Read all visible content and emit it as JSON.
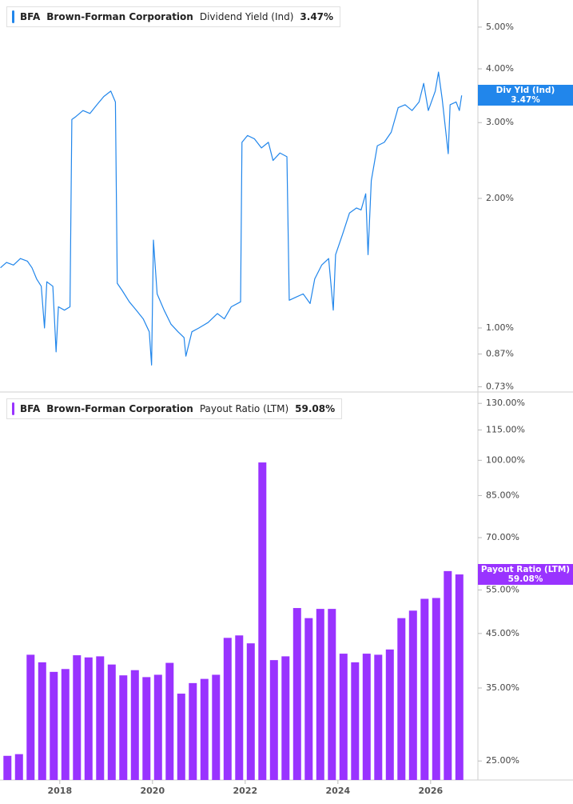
{
  "chart_data": [
    {
      "type": "line",
      "ticker": "BFA",
      "company": "Brown-Forman Corporation",
      "log_scale": true,
      "xlim": [
        2016.71,
        2027.02
      ],
      "ylim": [
        0.71,
        5.78
      ],
      "yticks": [
        {
          "value": 5,
          "label": "5.00%"
        },
        {
          "value": 4,
          "label": "4.00%"
        },
        {
          "value": 3,
          "label": "3.00%"
        },
        {
          "value": 2,
          "label": "2.00%"
        },
        {
          "value": 1,
          "label": "1.00%"
        },
        {
          "value": 0.87,
          "label": "0.87%"
        },
        {
          "value": 0.73,
          "label": "0.73%"
        }
      ],
      "x": [
        2016.72,
        2016.85,
        2017.0,
        2017.15,
        2017.3,
        2017.4,
        2017.5,
        2017.6,
        2017.67,
        2017.72,
        2017.85,
        2017.92,
        2017.97,
        2018.1,
        2018.22,
        2018.26,
        2018.35,
        2018.5,
        2018.65,
        2018.8,
        2018.95,
        2019.1,
        2019.2,
        2019.24,
        2019.35,
        2019.5,
        2019.65,
        2019.8,
        2019.93,
        2019.98,
        2020.02,
        2020.1,
        2020.25,
        2020.4,
        2020.55,
        2020.68,
        2020.72,
        2020.85,
        2021.0,
        2021.2,
        2021.4,
        2021.55,
        2021.7,
        2021.9,
        2021.93,
        2022.05,
        2022.2,
        2022.35,
        2022.5,
        2022.6,
        2022.75,
        2022.9,
        2022.95,
        2023.1,
        2023.25,
        2023.4,
        2023.5,
        2023.65,
        2023.8,
        2023.9,
        2023.95,
        2024.1,
        2024.25,
        2024.4,
        2024.5,
        2024.6,
        2024.65,
        2024.72,
        2024.85,
        2025.0,
        2025.15,
        2025.3,
        2025.45,
        2025.6,
        2025.75,
        2025.85,
        2025.95,
        2026.1,
        2026.17,
        2026.25,
        2026.38,
        2026.42,
        2026.55,
        2026.62,
        2026.67
      ],
      "series": [
        {
          "name": "Dividend Yield (Ind)",
          "short_name": "Div Yld (Ind)",
          "color": "#2186eb",
          "last_label": "3.47%",
          "values": [
            1.38,
            1.42,
            1.4,
            1.45,
            1.43,
            1.38,
            1.3,
            1.25,
            1.0,
            1.28,
            1.25,
            0.88,
            1.12,
            1.1,
            1.12,
            3.05,
            3.1,
            3.2,
            3.15,
            3.3,
            3.45,
            3.55,
            3.35,
            1.27,
            1.22,
            1.15,
            1.1,
            1.05,
            0.98,
            0.82,
            1.6,
            1.2,
            1.1,
            1.02,
            0.98,
            0.95,
            0.86,
            0.98,
            1.0,
            1.03,
            1.08,
            1.05,
            1.12,
            1.15,
            2.7,
            2.8,
            2.75,
            2.62,
            2.7,
            2.45,
            2.55,
            2.5,
            1.16,
            1.18,
            1.2,
            1.14,
            1.3,
            1.4,
            1.45,
            1.1,
            1.48,
            1.65,
            1.85,
            1.9,
            1.88,
            2.05,
            1.48,
            2.2,
            2.65,
            2.7,
            2.85,
            3.25,
            3.3,
            3.2,
            3.35,
            3.7,
            3.2,
            3.55,
            3.93,
            3.4,
            2.54,
            3.3,
            3.35,
            3.2,
            3.47
          ]
        }
      ]
    },
    {
      "type": "bar",
      "ticker": "BFA",
      "company": "Brown-Forman Corporation",
      "log_scale": true,
      "xlim": [
        2016.71,
        2027.02
      ],
      "ylim": [
        22.9,
        137
      ],
      "xticks": [
        2018,
        2020,
        2022,
        2024,
        2026
      ],
      "yticks": [
        {
          "value": 130,
          "label": "130.00%"
        },
        {
          "value": 115,
          "label": "115.00%"
        },
        {
          "value": 100,
          "label": "100.00%"
        },
        {
          "value": 85,
          "label": "85.00%"
        },
        {
          "value": 70,
          "label": "70.00%"
        },
        {
          "value": 55,
          "label": "55.00%"
        },
        {
          "value": 45,
          "label": "45.00%"
        },
        {
          "value": 35,
          "label": "35.00%"
        },
        {
          "value": 25,
          "label": "25.00%"
        }
      ],
      "x": [
        2016.87,
        2017.12,
        2017.37,
        2017.62,
        2017.87,
        2018.12,
        2018.37,
        2018.62,
        2018.87,
        2019.12,
        2019.37,
        2019.62,
        2019.87,
        2020.12,
        2020.37,
        2020.62,
        2020.87,
        2021.12,
        2021.37,
        2021.62,
        2021.87,
        2022.12,
        2022.37,
        2022.62,
        2022.87,
        2023.12,
        2023.37,
        2023.62,
        2023.87,
        2024.12,
        2024.37,
        2024.62,
        2024.87,
        2025.12,
        2025.37,
        2025.62,
        2025.87,
        2026.12,
        2026.37,
        2026.62
      ],
      "series": [
        {
          "name": "Payout Ratio (LTM)",
          "color": "#9933ff",
          "last_label": "59.08%",
          "values": [
            25.6,
            25.8,
            40.8,
            39.4,
            37.7,
            38.2,
            40.7,
            40.3,
            40.5,
            39.0,
            37.1,
            38.0,
            36.8,
            37.2,
            39.3,
            34.1,
            35.8,
            36.5,
            37.2,
            44.1,
            44.6,
            43.0,
            99.0,
            39.8,
            40.5,
            50.6,
            48.3,
            50.4,
            50.4,
            41.0,
            39.4,
            41.0,
            40.8,
            41.8,
            48.3,
            50.0,
            52.8,
            53.0,
            60.0,
            59.08
          ]
        }
      ]
    }
  ]
}
